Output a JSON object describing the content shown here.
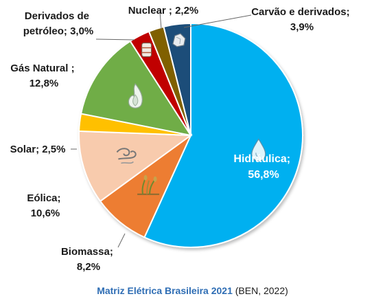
{
  "chart_data": {
    "type": "pie",
    "slices": [
      {
        "label": "Hidráulica",
        "value": 56.8,
        "text": "56,8%",
        "color": "#00b0f0",
        "icon": "water-drop-icon"
      },
      {
        "label": "Biomassa",
        "value": 8.2,
        "text": "8,2%",
        "color": "#ed7d31",
        "icon": "biomass-plant-icon"
      },
      {
        "label": "Eólica",
        "value": 10.6,
        "text": "10,6%",
        "color": "#f8cbad",
        "icon": "wind-icon"
      },
      {
        "label": "Solar",
        "value": 2.5,
        "text": "2,5%",
        "color": "#ffc000",
        "icon": null
      },
      {
        "label": "Gás Natural",
        "value": 12.8,
        "text": "12,8%",
        "color": "#70ad47",
        "icon": "gas-flame-icon"
      },
      {
        "label": "Derivados de petróleo",
        "value": 3.0,
        "text": "3,0%",
        "color": "#c00000",
        "icon": "oil-barrel-icon"
      },
      {
        "label": "Nuclear",
        "value": 2.2,
        "text": "2,2%",
        "color": "#806000",
        "icon": null
      },
      {
        "label": "Carvão e derivados",
        "value": 3.9,
        "text": "3,9%",
        "color": "#1f4e79",
        "icon": "coal-icon"
      }
    ],
    "label_lines": {
      "hidraulica": [
        "Hidráulica;",
        "56,8%"
      ],
      "biomassa": [
        "Biomassa;",
        "8,2%"
      ],
      "eolica": [
        "Eólica;",
        "10,6%"
      ],
      "solar": [
        "Solar; 2,5%"
      ],
      "gas": [
        "Gás Natural ;",
        "12,8%"
      ],
      "petroleo": [
        "Derivados de",
        "petróleo; 3,0%"
      ],
      "nuclear": [
        "Nuclear ; 2,2%"
      ],
      "carvao": [
        "Carvão e derivados;",
        "3,9%"
      ]
    }
  },
  "caption": {
    "title": "Matriz Elétrica Brasileira 2021",
    "source": " (BEN, 2022)"
  }
}
